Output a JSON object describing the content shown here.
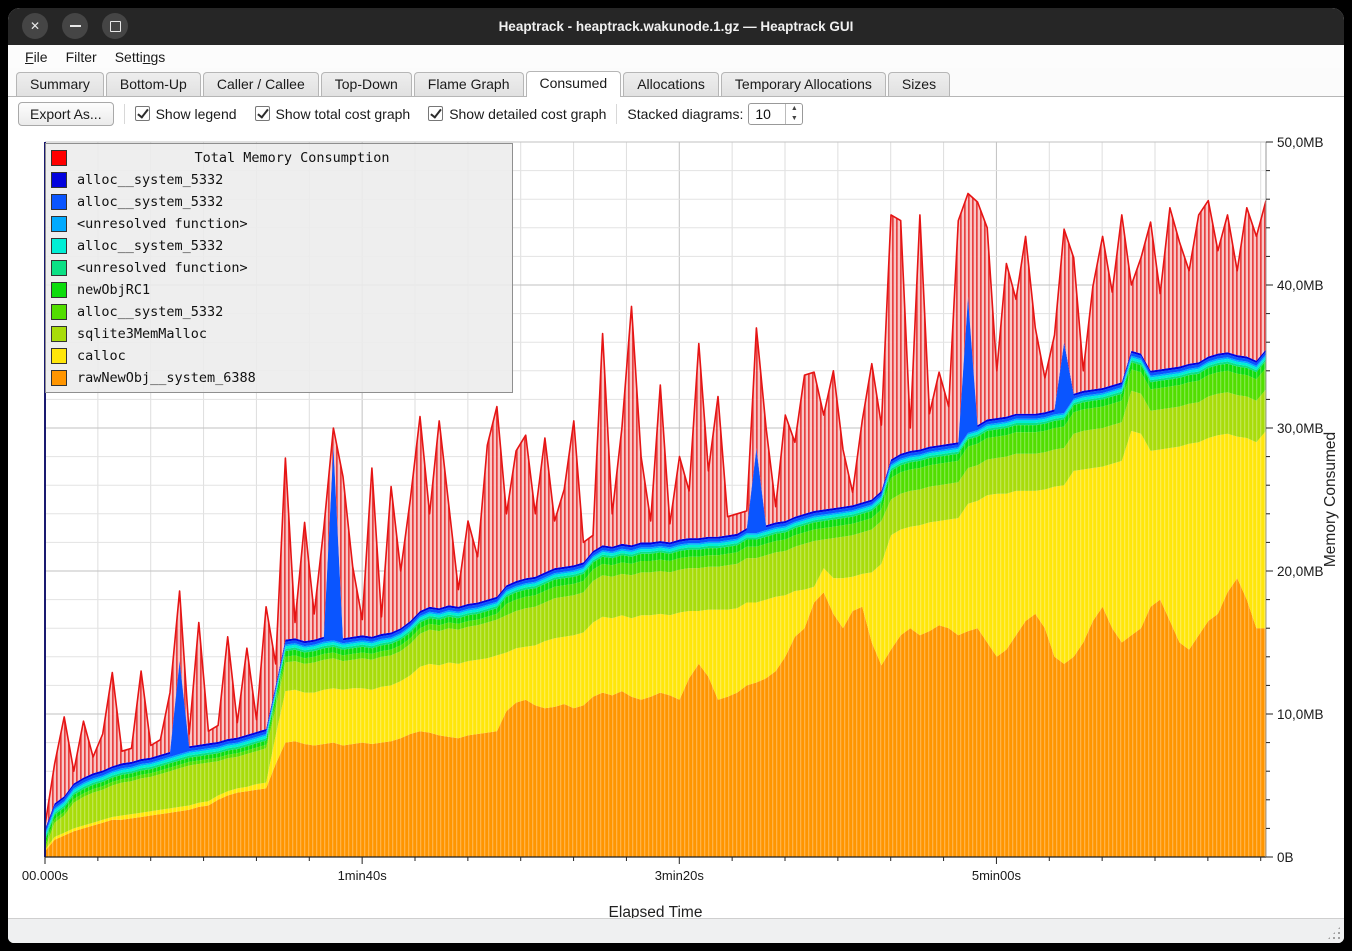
{
  "window": {
    "title": "Heaptrack - heaptrack.wakunode.1.gz — Heaptrack GUI",
    "controls": [
      {
        "name": "close",
        "glyph": "✕"
      },
      {
        "name": "minimize",
        "glyph": "bar"
      },
      {
        "name": "maximize",
        "glyph": "square"
      }
    ]
  },
  "menu": {
    "items": [
      {
        "name": "file",
        "pre": "",
        "key": "F",
        "post": "ile"
      },
      {
        "name": "filter",
        "pre": "Filter",
        "key": "",
        "post": ""
      },
      {
        "name": "settings",
        "pre": "Setti",
        "key": "n",
        "post": "gs"
      }
    ]
  },
  "tabs": {
    "active_index": 5,
    "items": [
      "Summary",
      "Bottom-Up",
      "Caller / Callee",
      "Top-Down",
      "Flame Graph",
      "Consumed",
      "Allocations",
      "Temporary Allocations",
      "Sizes"
    ]
  },
  "toolbar": {
    "export_label": "Export As...",
    "checkboxes": [
      {
        "label": "Show legend",
        "checked": true
      },
      {
        "label": "Show total cost graph",
        "checked": true
      },
      {
        "label": "Show detailed cost graph",
        "checked": true
      }
    ],
    "stacked_label": "Stacked diagrams:",
    "stacked_value": "10"
  },
  "chart_data": {
    "type": "area",
    "stacked": true,
    "xlabel": "Elapsed Time",
    "ylabel": "Memory Consumed",
    "xlim": [
      0,
      385
    ],
    "ylim": [
      0,
      50
    ],
    "x_minor_step_s": 16.6667,
    "y_minor_step_mb": 2,
    "grid": true,
    "x_ticks": [
      {
        "t": 0,
        "label": "00.000s"
      },
      {
        "t": 100,
        "label": "1min40s"
      },
      {
        "t": 200,
        "label": "3min20s"
      },
      {
        "t": 300,
        "label": "5min00s"
      }
    ],
    "y_ticks": [
      {
        "v": 0,
        "label": "0B"
      },
      {
        "v": 10,
        "label": "10,0MB"
      },
      {
        "v": 20,
        "label": "20,0MB"
      },
      {
        "v": 30,
        "label": "30,0MB"
      },
      {
        "v": 40,
        "label": "40,0MB"
      },
      {
        "v": 50,
        "label": "50,0MB"
      }
    ],
    "legend": {
      "position": "top-left",
      "title": {
        "label": "Total Memory Consumption",
        "color": "#ff0000"
      },
      "items": [
        {
          "label": "alloc__system_5332",
          "color": "#0202dd"
        },
        {
          "label": "alloc__system_5332",
          "color": "#0a55ff"
        },
        {
          "label": "<unresolved function>",
          "color": "#00aaff"
        },
        {
          "label": "alloc__system_5332",
          "color": "#00eed5"
        },
        {
          "label": "<unresolved function>",
          "color": "#0ce085"
        },
        {
          "label": "newObjRC1",
          "color": "#0cdc0c"
        },
        {
          "label": "alloc__system_5332",
          "color": "#52de00"
        },
        {
          "label": "sqlite3MemMalloc",
          "color": "#a8dc0a"
        },
        {
          "label": "calloc",
          "color": "#ffe60a"
        },
        {
          "label": "rawNewObj__system_6388",
          "color": "#ff9500"
        }
      ]
    },
    "units": "MB",
    "n_points": 128,
    "layers_bottom_to_top": [
      {
        "name": "rawNewObj__system_6388",
        "color": "#ff9500",
        "striped": true,
        "values": [
          0.4,
          1.2,
          1.5,
          1.8,
          2.0,
          2.2,
          2.4,
          2.6,
          2.6,
          2.7,
          2.8,
          2.9,
          3.0,
          3.1,
          3.2,
          3.3,
          3.5,
          3.6,
          4.0,
          4.3,
          4.5,
          4.6,
          4.7,
          4.8,
          6.5,
          8.0,
          8.1,
          7.9,
          7.8,
          7.9,
          8.0,
          7.8,
          7.9,
          8.0,
          7.9,
          8.0,
          8.1,
          8.3,
          8.6,
          8.8,
          8.7,
          8.5,
          8.4,
          8.3,
          8.5,
          8.6,
          8.7,
          8.8,
          10.2,
          10.8,
          11.0,
          10.6,
          10.4,
          10.5,
          10.7,
          10.4,
          10.6,
          11.2,
          11.5,
          11.3,
          11.6,
          11.2,
          11.0,
          11.2,
          11.5,
          11.3,
          11.0,
          12.5,
          13.5,
          12.6,
          11.0,
          11.2,
          11.5,
          12.0,
          12.2,
          12.5,
          13.0,
          14.0,
          15.4,
          16.0,
          17.8,
          18.5,
          17.0,
          16.0,
          17.2,
          17.5,
          15.0,
          13.4,
          14.5,
          15.5,
          16.0,
          15.5,
          15.8,
          16.2,
          16.0,
          15.5,
          15.8,
          16.0,
          15.0,
          14.0,
          14.5,
          15.5,
          16.5,
          17.0,
          16.0,
          14.0,
          13.5,
          14.0,
          15.0,
          16.5,
          17.5,
          16.0,
          15.0,
          15.5,
          16.0,
          17.5,
          18.0,
          16.5,
          15.0,
          14.5,
          15.5,
          16.5,
          17.0,
          18.5,
          19.5,
          18.0,
          16.0,
          16.0
        ]
      },
      {
        "name": "calloc",
        "color": "#ffe60a",
        "striped": true,
        "values": [
          0.1,
          0.2,
          0.2,
          0.2,
          0.2,
          0.2,
          0.2,
          0.2,
          0.3,
          0.3,
          0.3,
          0.3,
          0.3,
          0.3,
          0.3,
          0.3,
          0.3,
          0.3,
          0.3,
          0.3,
          0.3,
          0.3,
          0.4,
          0.4,
          2.0,
          3.6,
          3.6,
          3.6,
          3.7,
          3.8,
          3.8,
          3.9,
          3.9,
          3.8,
          3.8,
          3.9,
          3.9,
          4.0,
          4.1,
          4.5,
          4.8,
          4.9,
          5.2,
          5.2,
          5.2,
          5.2,
          5.2,
          5.3,
          4.1,
          3.8,
          3.7,
          4.2,
          4.7,
          4.8,
          4.7,
          5.1,
          5.1,
          5.2,
          5.3,
          5.4,
          5.3,
          5.5,
          5.9,
          5.7,
          5.5,
          5.6,
          6.1,
          4.7,
          3.7,
          4.7,
          6.3,
          6.1,
          5.9,
          5.8,
          5.6,
          5.5,
          5.2,
          4.3,
          3.2,
          2.7,
          1.1,
          1.7,
          2.5,
          3.5,
          2.4,
          2.3,
          4.9,
          7.1,
          8.0,
          7.4,
          7.1,
          7.7,
          7.6,
          7.3,
          7.6,
          8.2,
          8.9,
          8.9,
          10.3,
          11.4,
          10.9,
          10.1,
          9.1,
          8.6,
          9.7,
          11.9,
          12.5,
          13.0,
          12.1,
          10.7,
          9.8,
          11.5,
          12.7,
          14.3,
          13.6,
          10.9,
          10.5,
          12.1,
          13.7,
          14.4,
          13.5,
          12.8,
          12.5,
          11.1,
          9.9,
          11.3,
          13.0,
          13.8
        ]
      },
      {
        "name": "sqlite3MemMalloc",
        "color": "#a8dc0a",
        "striped": true,
        "values": [
          0.1,
          1.0,
          1.2,
          1.8,
          2.0,
          2.1,
          2.1,
          2.2,
          2.3,
          2.3,
          2.4,
          2.4,
          2.5,
          2.6,
          2.7,
          2.8,
          2.7,
          2.7,
          2.4,
          2.3,
          2.2,
          2.3,
          2.3,
          2.4,
          1.9,
          2.0,
          2.0,
          2.0,
          2.1,
          2.1,
          2.1,
          2.0,
          2.0,
          2.1,
          2.1,
          2.1,
          2.1,
          2.1,
          2.2,
          2.3,
          2.4,
          2.4,
          2.4,
          2.4,
          2.4,
          2.4,
          2.5,
          2.5,
          2.6,
          2.6,
          2.7,
          2.7,
          2.7,
          2.8,
          2.8,
          2.8,
          2.8,
          2.9,
          2.9,
          2.9,
          2.9,
          3.0,
          3.0,
          3.0,
          3.0,
          3.0,
          3.0,
          3.0,
          3.0,
          3.0,
          3.0,
          3.1,
          3.1,
          3.1,
          3.1,
          3.1,
          3.1,
          3.1,
          3.1,
          3.2,
          3.2,
          2.0,
          2.8,
          2.9,
          2.9,
          2.9,
          3.0,
          3.0,
          2.5,
          2.5,
          2.5,
          2.5,
          2.5,
          2.5,
          2.5,
          2.5,
          2.5,
          2.5,
          2.5,
          2.5,
          2.6,
          2.6,
          2.6,
          2.6,
          2.6,
          2.6,
          2.6,
          2.6,
          2.7,
          2.7,
          2.7,
          2.7,
          2.7,
          2.8,
          2.8,
          2.8,
          2.8,
          2.8,
          2.8,
          2.8,
          2.8,
          2.9,
          2.9,
          2.9,
          2.9,
          2.9,
          2.9,
          2.9
        ]
      },
      {
        "name": "alloc__system_5332",
        "color": "#52de00",
        "striped": true,
        "segments": [
          [
            24,
            0.25
          ],
          [
            24,
            0.4
          ],
          [
            40,
            0.8
          ],
          [
            40,
            1.5
          ]
        ]
      },
      {
        "name": "newObjRC1",
        "color": "#0cdc0c",
        "striped": true,
        "segments": [
          [
            24,
            0.3
          ],
          [
            24,
            0.4
          ],
          [
            80,
            0.5
          ]
        ]
      },
      {
        "name": "<unresolved function>",
        "color": "#0ce085",
        "thickness": 0.15
      },
      {
        "name": "alloc__system_5332",
        "color": "#00eed5",
        "thickness": 0.18
      },
      {
        "name": "<unresolved function>",
        "color": "#00aaff",
        "thickness": 0.12
      },
      {
        "name": "alloc__system_5332",
        "color": "#0a55ff",
        "base": 0.2,
        "spikes": {
          "14": 6.4,
          "30": 13.5,
          "74": 5.8,
          "96": 9.4,
          "106": 4.8
        }
      },
      {
        "name": "alloc__system_5332",
        "color": "#0202dd",
        "thickness": 0.15
      }
    ],
    "total": {
      "name": "Total Memory Consumption",
      "line_color": "#e61414",
      "fill_bg": "#f8c6c6",
      "hatch_color": "#e84040",
      "values": [
        2.2,
        6.5,
        9.8,
        6.0,
        9.5,
        7.0,
        8.6,
        12.9,
        7.4,
        7.6,
        13.0,
        7.8,
        8.2,
        11.5,
        18.6,
        8.6,
        16.4,
        8.8,
        9.2,
        15.4,
        9.4,
        14.6,
        9.6,
        17.5,
        13.5,
        27.9,
        16.4,
        23.4,
        17.0,
        23.0,
        30.0,
        26.6,
        20.3,
        16.6,
        27.2,
        16.8,
        25.9,
        20.0,
        25.0,
        30.8,
        24.0,
        30.5,
        24.6,
        18.7,
        23.5,
        21.0,
        28.8,
        31.5,
        24.0,
        28.4,
        29.5,
        24.0,
        29.3,
        23.5,
        25.7,
        30.5,
        22.0,
        22.5,
        36.6,
        24.0,
        30.0,
        38.5,
        28.0,
        23.5,
        33.0,
        23.3,
        28.0,
        25.6,
        35.9,
        27.0,
        32.2,
        23.8,
        24.0,
        24.2,
        37.0,
        30.0,
        24.5,
        30.9,
        29.0,
        33.7,
        33.9,
        30.9,
        34.0,
        28.5,
        25.5,
        30.5,
        34.5,
        30.2,
        44.9,
        44.5,
        30.0,
        44.9,
        31.0,
        33.9,
        31.5,
        44.5,
        46.4,
        45.8,
        44.0,
        34.0,
        41.5,
        39.0,
        43.4,
        37.0,
        33.5,
        36.5,
        43.9,
        41.9,
        34.0,
        39.9,
        43.4,
        39.5,
        44.9,
        40.0,
        41.9,
        44.4,
        39.4,
        45.4,
        43.0,
        41.0,
        44.9,
        45.9,
        42.4,
        44.9,
        41.0,
        45.4,
        43.4,
        45.9
      ]
    }
  }
}
